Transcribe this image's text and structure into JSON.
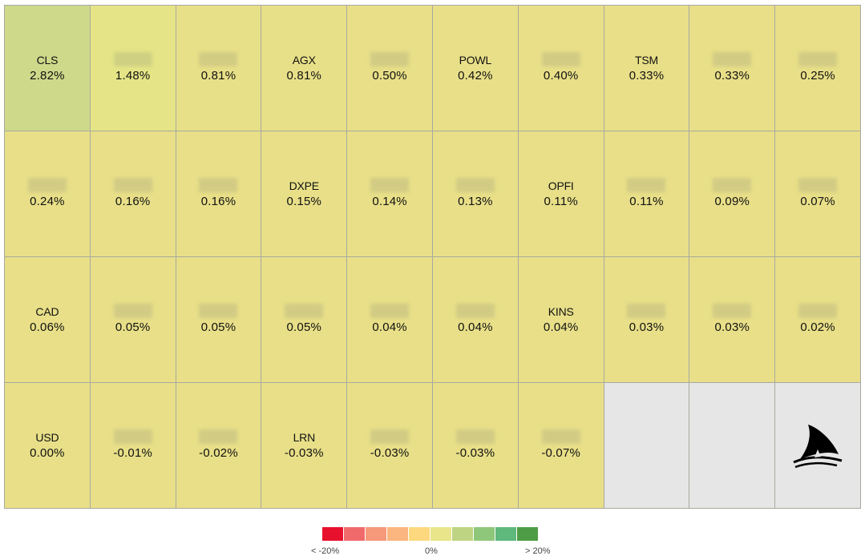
{
  "cells": [
    {
      "ticker": "CLS",
      "value": "2.82%",
      "color": "#cfd98a"
    },
    {
      "ticker": "",
      "value": "1.48%",
      "color": "#e5e587",
      "hidden": true
    },
    {
      "ticker": "",
      "value": "0.81%",
      "color": "#e8e088",
      "hidden": true
    },
    {
      "ticker": "AGX",
      "value": "0.81%",
      "color": "#e8e088"
    },
    {
      "ticker": "",
      "value": "0.50%",
      "color": "#e8df88",
      "hidden": true
    },
    {
      "ticker": "POWL",
      "value": "0.42%",
      "color": "#e8df88"
    },
    {
      "ticker": "",
      "value": "0.40%",
      "color": "#e8df88",
      "hidden": true
    },
    {
      "ticker": "TSM",
      "value": "0.33%",
      "color": "#e8df88"
    },
    {
      "ticker": "",
      "value": "0.33%",
      "color": "#e8df88",
      "hidden": true
    },
    {
      "ticker": "",
      "value": "0.25%",
      "color": "#e8df88",
      "hidden": true
    },
    {
      "ticker": "",
      "value": "0.24%",
      "color": "#e8df88",
      "hidden": true
    },
    {
      "ticker": "",
      "value": "0.16%",
      "color": "#e8df88",
      "hidden": true
    },
    {
      "ticker": "",
      "value": "0.16%",
      "color": "#e8df88",
      "hidden": true
    },
    {
      "ticker": "DXPE",
      "value": "0.15%",
      "color": "#e8df88"
    },
    {
      "ticker": "",
      "value": "0.14%",
      "color": "#e8df88",
      "hidden": true
    },
    {
      "ticker": "",
      "value": "0.13%",
      "color": "#e8df88",
      "hidden": true
    },
    {
      "ticker": "OPFI",
      "value": "0.11%",
      "color": "#e8df88"
    },
    {
      "ticker": "",
      "value": "0.11%",
      "color": "#e8df88",
      "hidden": true
    },
    {
      "ticker": "",
      "value": "0.09%",
      "color": "#e8df88",
      "hidden": true
    },
    {
      "ticker": "",
      "value": "0.07%",
      "color": "#e8df88",
      "hidden": true
    },
    {
      "ticker": "CAD",
      "value": "0.06%",
      "color": "#e8df88"
    },
    {
      "ticker": "",
      "value": "0.05%",
      "color": "#e8df88",
      "hidden": true
    },
    {
      "ticker": "",
      "value": "0.05%",
      "color": "#e8df88",
      "hidden": true
    },
    {
      "ticker": "",
      "value": "0.05%",
      "color": "#e8df88",
      "hidden": true
    },
    {
      "ticker": "",
      "value": "0.04%",
      "color": "#e8df88",
      "hidden": true
    },
    {
      "ticker": "",
      "value": "0.04%",
      "color": "#e8df88",
      "hidden": true
    },
    {
      "ticker": "KINS",
      "value": "0.04%",
      "color": "#e8df88"
    },
    {
      "ticker": "",
      "value": "0.03%",
      "color": "#e8df88",
      "hidden": true
    },
    {
      "ticker": "",
      "value": "0.03%",
      "color": "#e8df88",
      "hidden": true
    },
    {
      "ticker": "",
      "value": "0.02%",
      "color": "#e8df88",
      "hidden": true
    },
    {
      "ticker": "USD",
      "value": "0.00%",
      "color": "#e8df88"
    },
    {
      "ticker": "",
      "value": "-0.01%",
      "color": "#e8df88",
      "hidden": true
    },
    {
      "ticker": "",
      "value": "-0.02%",
      "color": "#e8df88",
      "hidden": true
    },
    {
      "ticker": "LRN",
      "value": "-0.03%",
      "color": "#e8df88"
    },
    {
      "ticker": "",
      "value": "-0.03%",
      "color": "#e8df88",
      "hidden": true
    },
    {
      "ticker": "",
      "value": "-0.03%",
      "color": "#e8df88",
      "hidden": true
    },
    {
      "ticker": "",
      "value": "-0.07%",
      "color": "#e8df88",
      "hidden": true
    },
    {
      "empty": true
    },
    {
      "empty": true
    },
    {
      "empty": true,
      "logo": "shark-fin-icon"
    }
  ],
  "legend": {
    "colors": [
      "#e8112d",
      "#f16a6b",
      "#f6987a",
      "#fbb57f",
      "#fdd87e",
      "#e8e58a",
      "#bed483",
      "#8ec77a",
      "#5fb87c",
      "#4e9d46"
    ],
    "min_label": "< -20%",
    "mid_label": "0%",
    "max_label": "> 20%"
  }
}
